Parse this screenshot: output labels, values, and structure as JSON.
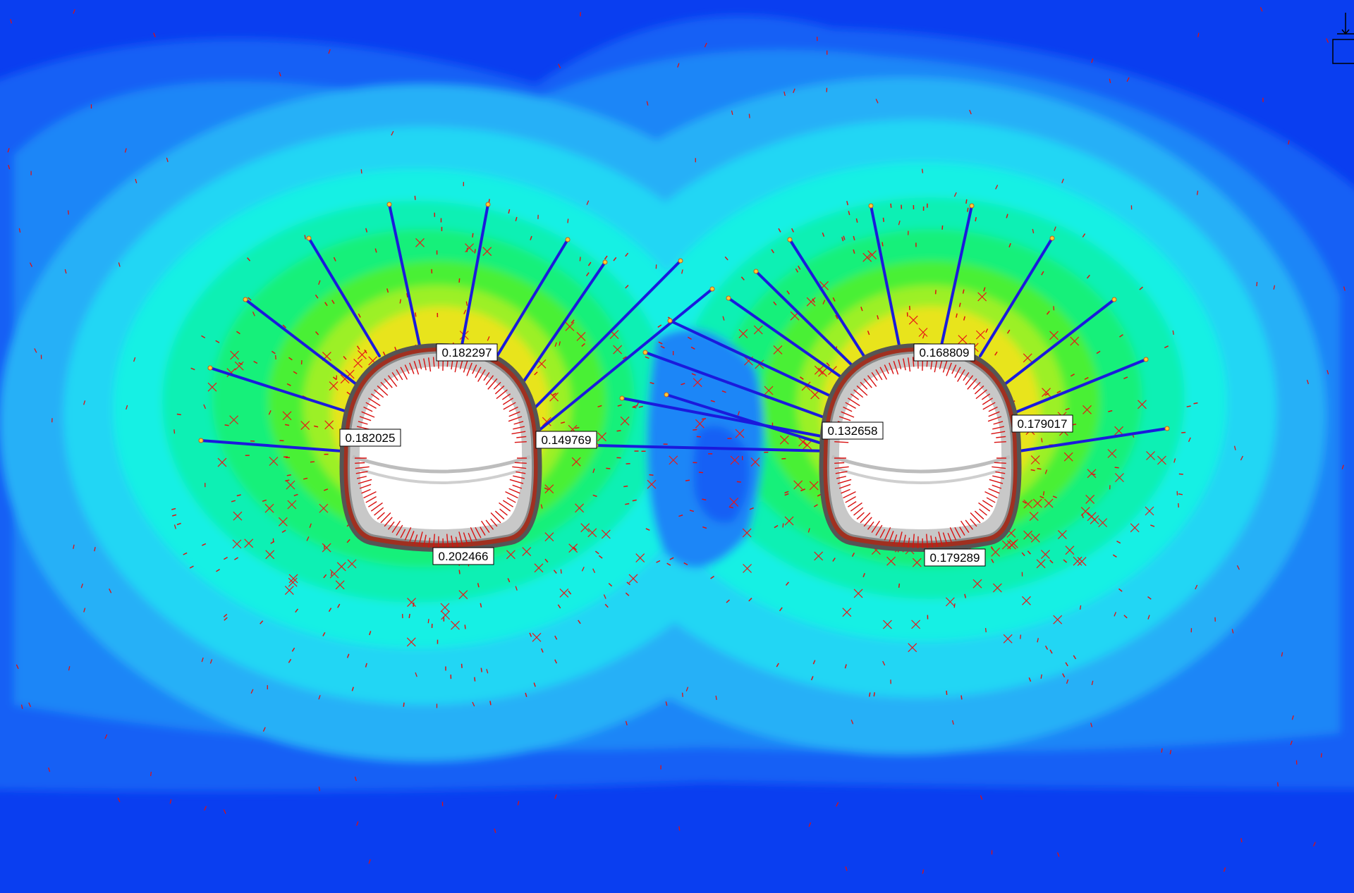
{
  "colors": {
    "contour_levels": [
      "#0a3ef0",
      "#1560f5",
      "#1f86f7",
      "#28b0f7",
      "#22d6f4",
      "#18f0e4",
      "#10f0b4",
      "#12f07a",
      "#48f034",
      "#9cf028",
      "#e8e41a"
    ],
    "bolt": "#1a1adc",
    "arrow": "#e01010",
    "lining": "#b9b9b9",
    "label_bg": "#ffffff"
  },
  "labels": [
    {
      "id": "left-crown",
      "text": "0.182297"
    },
    {
      "id": "left-left-wall",
      "text": "0.182025"
    },
    {
      "id": "left-right-wall",
      "text": "0.149769"
    },
    {
      "id": "left-invert",
      "text": "0.202466"
    },
    {
      "id": "right-crown",
      "text": "0.168809"
    },
    {
      "id": "right-left-wall",
      "text": "0.132658"
    },
    {
      "id": "right-right-wall",
      "text": "0.179017"
    },
    {
      "id": "right-invert",
      "text": "0.179289"
    }
  ],
  "icons": [
    "support-symbol-icon"
  ]
}
